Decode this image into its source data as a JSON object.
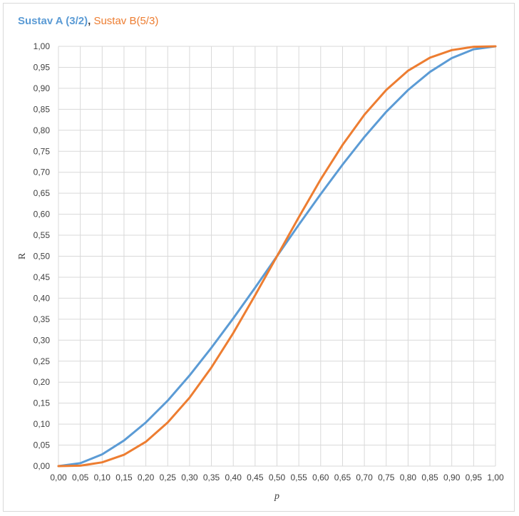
{
  "chart_data": {
    "type": "line",
    "title_parts": [
      {
        "text": "Sustav A (3/2)",
        "color": "#5b9bd5",
        "bold": true
      },
      {
        "text": ", ",
        "color": "#404040",
        "bold": true
      },
      {
        "text": "Sustav B(5/3)",
        "color": "#ed7d31",
        "bold": false
      }
    ],
    "xlabel": "p",
    "ylabel": "R",
    "xlim": [
      0,
      1
    ],
    "ylim": [
      0,
      1
    ],
    "x_ticks": [
      "0,00",
      "0,05",
      "0,10",
      "0,15",
      "0,20",
      "0,25",
      "0,30",
      "0,35",
      "0,40",
      "0,45",
      "0,50",
      "0,55",
      "0,60",
      "0,65",
      "0,70",
      "0,75",
      "0,80",
      "0,85",
      "0,90",
      "0,95",
      "1,00"
    ],
    "y_ticks": [
      "0,00",
      "0,05",
      "0,10",
      "0,15",
      "0,20",
      "0,25",
      "0,30",
      "0,35",
      "0,40",
      "0,45",
      "0,50",
      "0,55",
      "0,60",
      "0,65",
      "0,70",
      "0,75",
      "0,80",
      "0,85",
      "0,90",
      "0,95",
      "1,00"
    ],
    "grid": true,
    "x": [
      0.0,
      0.05,
      0.1,
      0.15,
      0.2,
      0.25,
      0.3,
      0.35,
      0.4,
      0.45,
      0.5,
      0.55,
      0.6,
      0.65,
      0.7,
      0.75,
      0.8,
      0.85,
      0.9,
      0.95,
      1.0
    ],
    "series": [
      {
        "name": "Sustav A (3/2)",
        "color": "#5b9bd5",
        "values": [
          0.0,
          0.007,
          0.028,
          0.061,
          0.104,
          0.156,
          0.216,
          0.282,
          0.352,
          0.425,
          0.5,
          0.575,
          0.648,
          0.718,
          0.784,
          0.844,
          0.896,
          0.939,
          0.972,
          0.993,
          1.0
        ]
      },
      {
        "name": "Sustav B(5/3)",
        "color": "#ed7d31",
        "values": [
          0.0,
          0.001,
          0.009,
          0.027,
          0.058,
          0.104,
          0.163,
          0.235,
          0.317,
          0.407,
          0.5,
          0.593,
          0.683,
          0.765,
          0.837,
          0.896,
          0.942,
          0.973,
          0.991,
          0.999,
          1.0
        ]
      }
    ]
  }
}
